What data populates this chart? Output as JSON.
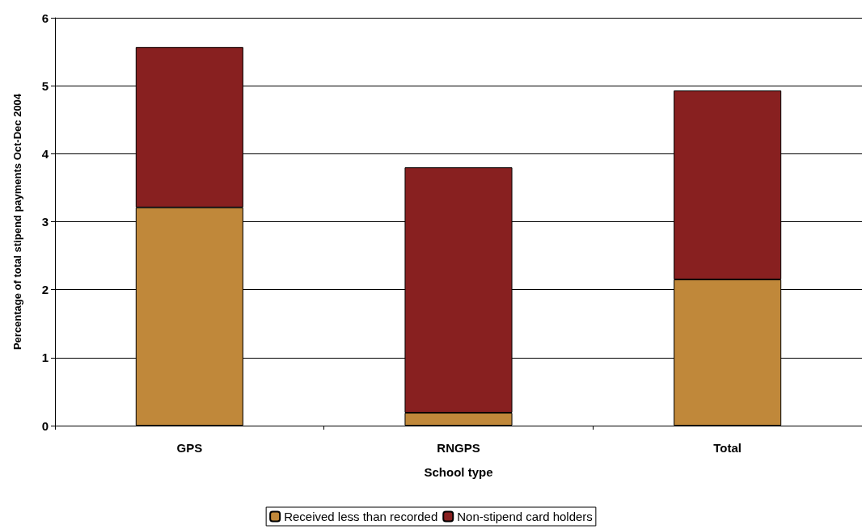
{
  "chart_data": {
    "type": "bar",
    "stacked": true,
    "xlabel": "School type",
    "ylabel": "Percentage of total stipend payments Oct-Dec 2004",
    "categories": [
      "GPS",
      "RNGPS",
      "Total"
    ],
    "series": [
      {
        "name": "Received less than recorded",
        "color": "#c0883a",
        "values": [
          3.21,
          0.19,
          2.15
        ]
      },
      {
        "name": "Non-stipend card holders",
        "color": "#882020",
        "values": [
          2.36,
          3.61,
          2.78
        ]
      }
    ],
    "ylim": [
      0,
      6
    ],
    "yticks": [
      0,
      1,
      2,
      3,
      4,
      5,
      6
    ],
    "grid": "y",
    "legend": "bottom"
  }
}
